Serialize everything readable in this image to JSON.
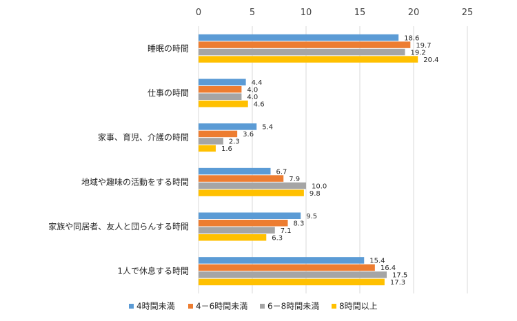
{
  "chart_data": {
    "type": "bar",
    "orientation": "horizontal",
    "categories": [
      "睡眠の時間",
      "仕事の時間",
      "家事、育児、介護の時間",
      "地域や趣味の活動をする時間",
      "家族や同居者、友人と団らんする時間",
      "1人で休息する時間"
    ],
    "series": [
      {
        "name": "4時間未満",
        "color": "#5b9bd5",
        "values": [
          18.6,
          4.4,
          5.4,
          6.7,
          9.5,
          15.4
        ]
      },
      {
        "name": "4－6時間未満",
        "color": "#ed7d31",
        "values": [
          19.7,
          4.0,
          3.6,
          7.9,
          8.3,
          16.4
        ]
      },
      {
        "name": "6－8時間未満",
        "color": "#a5a5a5",
        "values": [
          19.2,
          4.0,
          2.3,
          10.0,
          7.1,
          17.5
        ]
      },
      {
        "name": "8時間以上",
        "color": "#ffc000",
        "values": [
          20.4,
          4.6,
          1.6,
          9.8,
          6.3,
          17.3
        ]
      }
    ],
    "xlim": [
      0,
      25
    ],
    "xticks": [
      "0",
      "5",
      "10",
      "15",
      "20",
      "25"
    ],
    "x_axis_position": "top",
    "grid": true,
    "legend_position": "bottom",
    "title": "",
    "xlabel": "",
    "ylabel": ""
  }
}
